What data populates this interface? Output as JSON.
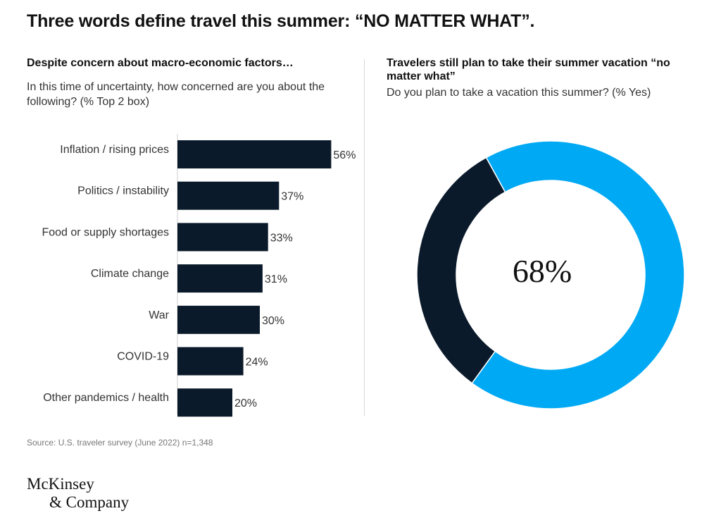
{
  "title": "Three words define travel this summer: “NO MATTER WHAT”.",
  "left_panel": {
    "heading": "Despite concern about macro-economic factors…",
    "subheading": "In this time of uncertainty, how concerned are you about the following? (% Top 2 box)"
  },
  "right_panel": {
    "heading": "Travelers still plan to take their summer vacation “no matter what”",
    "subheading": "Do you plan to take a vacation this summer? (% Yes)",
    "center_label": "68%"
  },
  "source": "Source: U.S. traveler survey (June 2022) n=1,348",
  "logo": {
    "line1": "McKinsey",
    "line2": "& Company"
  },
  "colors": {
    "bar": "#0b1a2b",
    "donut_yes": "#00a9f4",
    "donut_no": "#0b1a2b"
  },
  "chart_data": [
    {
      "type": "bar",
      "orientation": "horizontal",
      "categories": [
        "Inflation / rising prices",
        "Politics / instability",
        "Food or supply shortages",
        "Climate change",
        "War",
        "COVID-19",
        "Other pandemics / health"
      ],
      "values": [
        56,
        37,
        33,
        31,
        30,
        24,
        20
      ],
      "value_labels": [
        "56%",
        "37%",
        "33%",
        "31%",
        "30%",
        "24%",
        "20%"
      ],
      "unit": "%",
      "grid": false
    },
    {
      "type": "pie",
      "variant": "donut",
      "slices": [
        {
          "value": 68
        },
        {
          "value": 32
        }
      ]
    }
  ]
}
